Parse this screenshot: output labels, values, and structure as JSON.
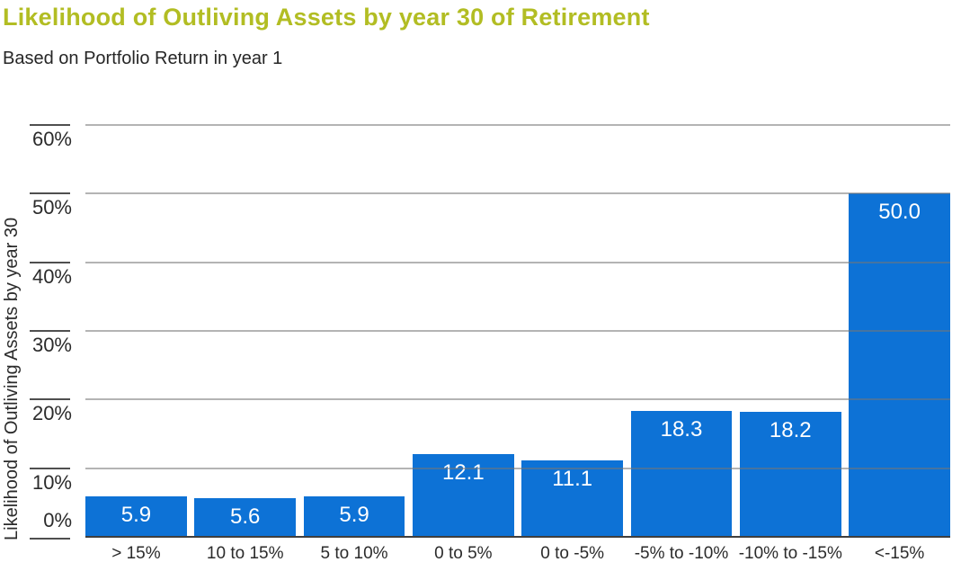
{
  "page": {
    "title": "Likelihood of Outliving Assets by year 30 of Retirement",
    "subtitle": "Based on Portfolio Return in year 1"
  },
  "colors": {
    "title_green": "#b2bd23",
    "bar_blue": "#0d72d6",
    "text_dark": "#2b2b2b",
    "gridline_gray": "#a9a9a9",
    "tick_mark_dark": "#4f4f4f",
    "axis_line_dark": "#3f3f3f",
    "bar_value_text": "#ffffff"
  },
  "chart_data": {
    "type": "bar",
    "title": "Likelihood of Outliving Assets by year 30 of Retirement",
    "subtitle": "Based on Portfolio Return in year 1",
    "xlabel": "",
    "ylabel": "Likelihood of Outliving Assets by year 30",
    "categories": [
      "> 15%",
      "10 to 15%",
      "5 to 10%",
      "0 to 5%",
      "0 to -5%",
      "-5% to -10%",
      "-10% to -15%",
      "<-15%"
    ],
    "values": [
      5.9,
      5.6,
      5.9,
      12.1,
      11.1,
      18.3,
      18.2,
      50.0
    ],
    "value_labels": [
      "5.9",
      "5.6",
      "5.9",
      "12.1",
      "11.1",
      "18.3",
      "18.2",
      "50.0"
    ],
    "ylim": [
      0,
      60
    ],
    "yticks": [
      0,
      10,
      20,
      30,
      40,
      50,
      60
    ],
    "ytick_labels": [
      "0%",
      "10%",
      "20%",
      "30%",
      "40%",
      "50%",
      "60%"
    ],
    "grid": "horizontal gridlines drawn over bars",
    "legend_position": "none"
  }
}
